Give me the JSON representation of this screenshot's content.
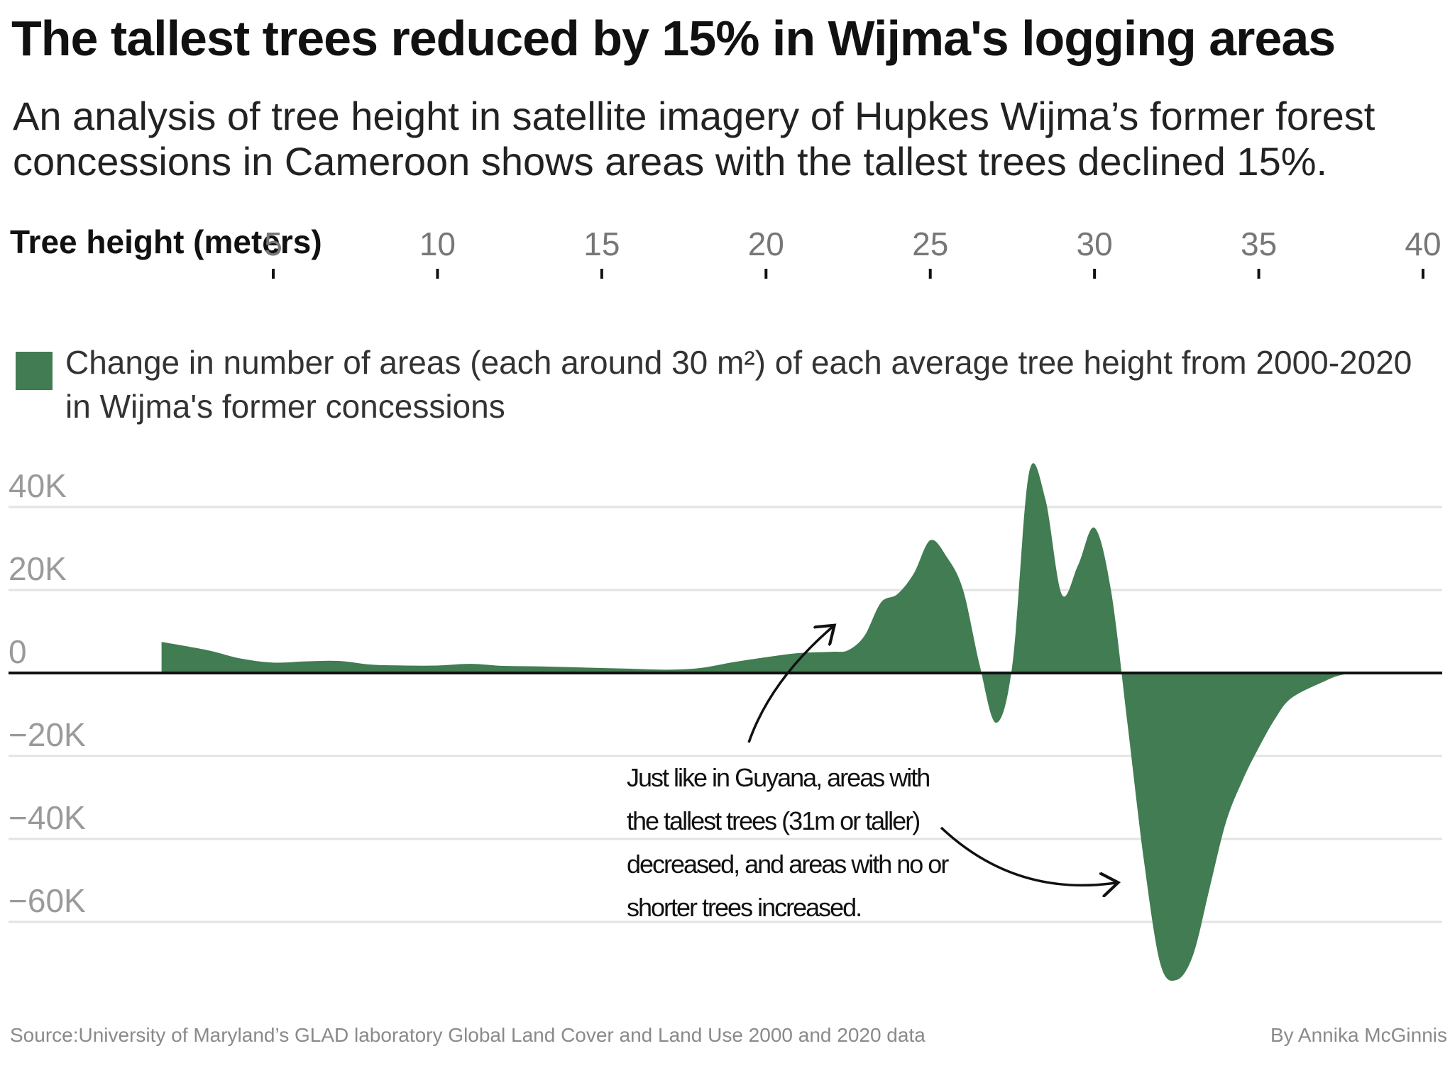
{
  "title": "The tallest trees reduced by 15% in Wijma's logging areas",
  "subtitle": "An analysis of tree height in satellite imagery of Hupkes Wijma’s former forest concessions in Cameroon shows areas with the tallest trees declined 15%.",
  "annotation": "Just like in Guyana, areas with the tallest trees (31m or taller) decreased, and areas with no or shorter trees increased.",
  "source": "Source:University of Maryland’s GLAD laboratory Global Land Cover and Land Use 2000 and 2020 data",
  "byline": "By Annika McGinnis",
  "colors": {
    "area": "#417c52",
    "zero_line": "#111111",
    "grid": "#e3e3e3"
  },
  "chart_data": {
    "type": "area",
    "xlabel": "Tree height (meters)",
    "x_ticks": [
      "5",
      "10",
      "15",
      "20",
      "25",
      "30",
      "35",
      "40"
    ],
    "xlim": [
      -1,
      40
    ],
    "y_ticks": [
      "40K",
      "20K",
      "0",
      "−20K",
      "−40K",
      "−60K"
    ],
    "ylim": [
      -74000,
      50000
    ],
    "grid": true,
    "legend": {
      "label": "Change in number of areas (each around 30 m²) of each average tree height from 2000-2020 in Wijma's former concessions",
      "position": "top-left"
    },
    "series": [
      {
        "x": [
          1.6,
          3,
          4,
          5,
          6,
          7,
          8,
          9,
          10,
          11,
          12,
          13,
          14,
          15,
          16,
          17,
          18,
          19,
          20,
          21,
          22,
          22.5,
          23,
          23.5,
          24,
          24.5,
          25,
          25.5,
          26,
          26.5,
          27,
          27.5,
          28,
          28.5,
          29,
          29.5,
          30,
          30.5,
          31,
          31.5,
          32,
          32.5,
          33,
          33.5,
          34,
          34.5,
          35,
          35.5,
          36,
          37,
          37.5,
          38,
          38.5,
          40
        ],
        "y": [
          7500,
          5500,
          3500,
          2500,
          2800,
          2900,
          2000,
          1800,
          1800,
          2200,
          1700,
          1600,
          1400,
          1200,
          1000,
          800,
          1200,
          2600,
          3800,
          4800,
          5100,
          5500,
          9000,
          17000,
          19000,
          24000,
          32000,
          28000,
          20000,
          2000,
          -12000,
          2000,
          48000,
          42000,
          19000,
          26000,
          35000,
          20000,
          -12000,
          -45000,
          -70000,
          -74000,
          -68000,
          -52000,
          -36000,
          -26000,
          -18000,
          -11000,
          -6000,
          -2000,
          -500,
          0,
          0,
          0
        ]
      }
    ]
  }
}
